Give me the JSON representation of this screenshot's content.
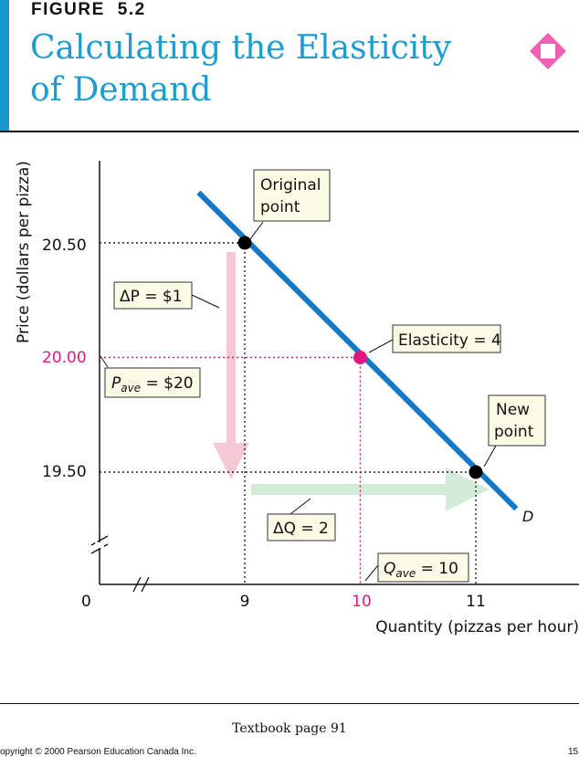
{
  "header": {
    "figure_label": "FIGURE",
    "figure_number": "5.2",
    "title_line1": "Calculating the Elasticity",
    "title_line2": "of Demand",
    "accent_color": "#1597c9",
    "icon": "diamond-icon"
  },
  "chart_data": {
    "type": "line",
    "xlabel": "Quantity (pizzas per hour)",
    "ylabel": "Price (dollars per pizza)",
    "origin_label": "0",
    "x_ticks": [
      {
        "value": 9,
        "label": "9"
      },
      {
        "value": 10,
        "label": "10",
        "highlight": true
      },
      {
        "value": 11,
        "label": "11"
      }
    ],
    "y_ticks": [
      {
        "value": 20.5,
        "label": "20.50"
      },
      {
        "value": 20.0,
        "label": "20.00",
        "highlight": true
      },
      {
        "value": 19.5,
        "label": "19.50"
      }
    ],
    "xlim": [
      7.6,
      12.0
    ],
    "ylim": [
      19.0,
      20.95
    ],
    "axis_breaks": true,
    "demand_curve": {
      "label": "D",
      "color": "#1478c8",
      "points": [
        {
          "x": 8.6,
          "y": 20.72
        },
        {
          "x": 11.35,
          "y": 19.34
        }
      ]
    },
    "points": [
      {
        "name": "original-point",
        "x": 9,
        "y": 20.5,
        "color": "#000000"
      },
      {
        "name": "midpoint",
        "x": 10,
        "y": 20.0,
        "color": "#e0187e"
      },
      {
        "name": "new-point",
        "x": 11,
        "y": 19.5,
        "color": "#000000"
      }
    ],
    "annotations": {
      "original_point": [
        "Original",
        "point"
      ],
      "new_point": [
        "New",
        "point"
      ],
      "elasticity": "Elasticity = 4",
      "delta_p": "ΔP = $1",
      "p_ave_sym": "P",
      "p_ave_sub": "ave",
      "p_ave_val": " = $20",
      "delta_q": "ΔQ = 2",
      "q_ave_sym": "Q",
      "q_ave_sub": "ave",
      "q_ave_val": " = 10"
    },
    "highlight_color": "#e0187e",
    "box_fill": "#fbfbe6",
    "arrow_dp_color": "#f4c9d3",
    "arrow_dq_color": "#d3ecd9"
  },
  "footer": {
    "textbook_ref": "Textbook page 91",
    "copyright": "opyright © 2000 Pearson Education Canada Inc.",
    "page_number": "15"
  }
}
